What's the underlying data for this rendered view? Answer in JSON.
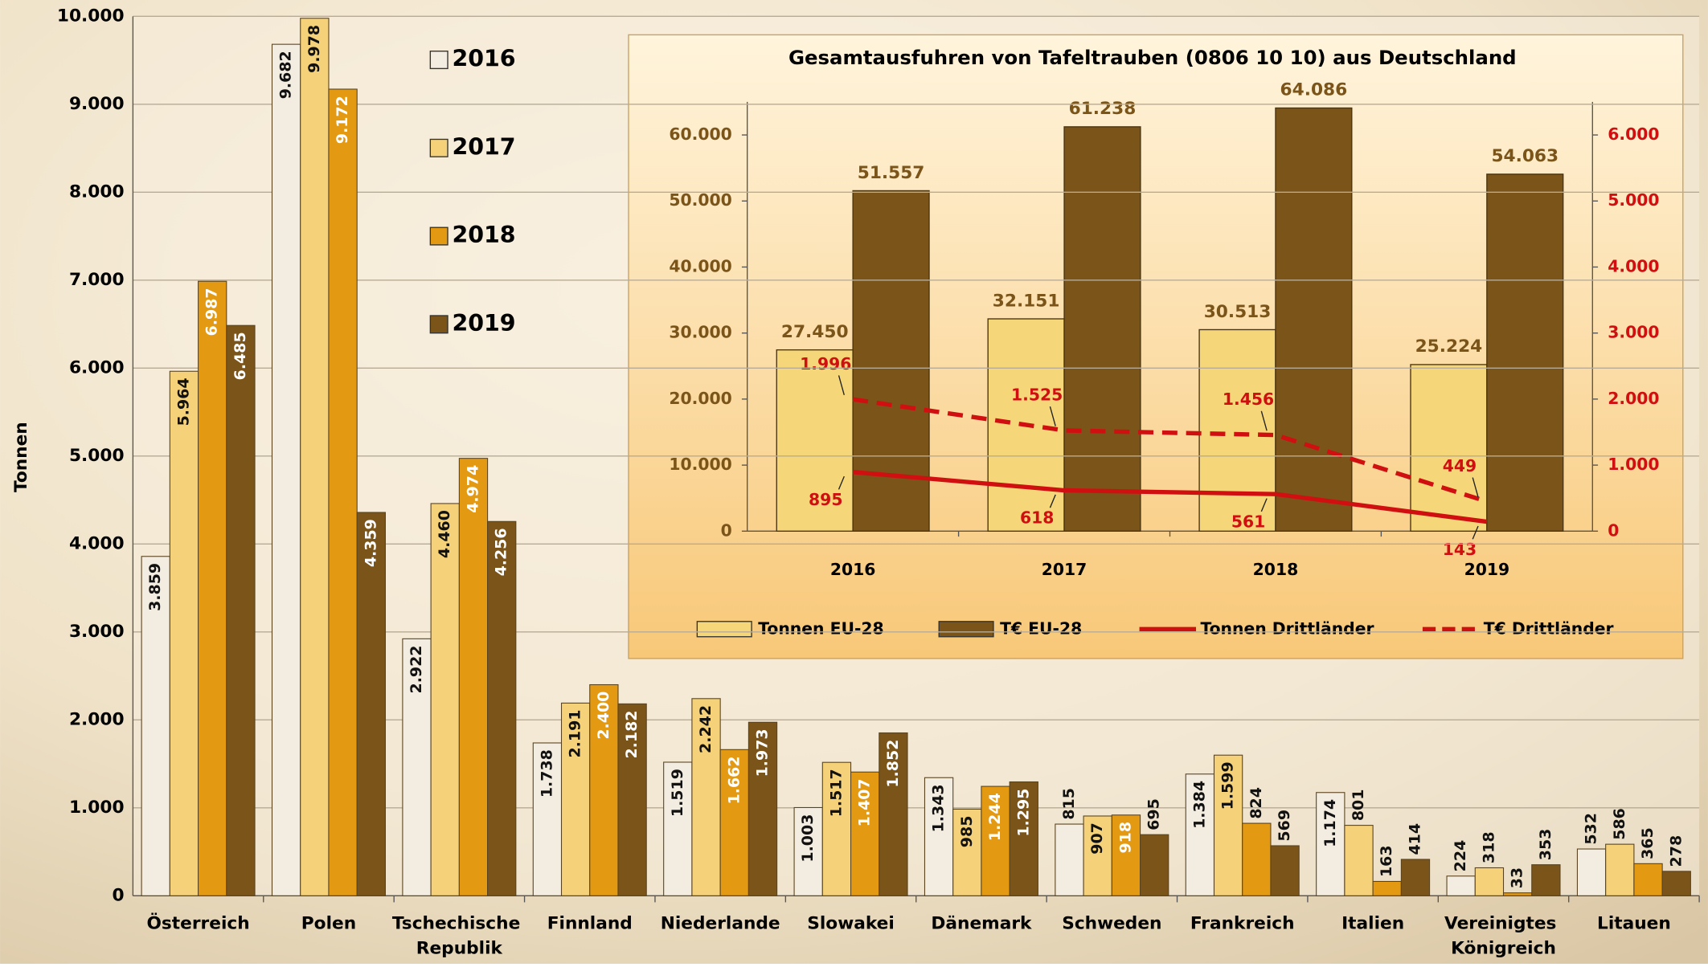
{
  "chart_data": [
    {
      "type": "bar",
      "ylabel": "Tonnen",
      "categories": [
        "Österreich",
        "Polen",
        "Tschechische Republik",
        "Finnland",
        "Niederlande",
        "Slowakei",
        "Dänemark",
        "Schweden",
        "Frankreich",
        "Italien",
        "Vereinigtes Königreich",
        "Litauen"
      ],
      "series": [
        {
          "name": "2016",
          "color": "#f3ece0",
          "values": [
            3859,
            9682,
            2922,
            1738,
            1519,
            1003,
            1343,
            815,
            1384,
            1174,
            224,
            532
          ],
          "value_labels": [
            "3.859",
            "9.682",
            "2.922",
            "1.738",
            "1.519",
            "1.003",
            "1.343",
            "815",
            "1.384",
            "1.174",
            "224",
            "532"
          ]
        },
        {
          "name": "2017",
          "color": "#f5d27a",
          "values": [
            5964,
            9978,
            4460,
            2191,
            2242,
            1517,
            985,
            907,
            1599,
            801,
            318,
            586
          ],
          "value_labels": [
            "5.964",
            "9.978",
            "4.460",
            "2.191",
            "2.242",
            "1.517",
            "985",
            "907",
            "1.599",
            "801",
            "318",
            "586"
          ]
        },
        {
          "name": "2018",
          "color": "#e39a12",
          "values": [
            6987,
            9172,
            4974,
            2400,
            1662,
            1407,
            1244,
            918,
            824,
            163,
            33,
            365
          ],
          "value_labels": [
            "6.987",
            "9.172",
            "4.974",
            "2.400",
            "1.662",
            "1.407",
            "1.244",
            "918",
            "824",
            "163",
            "33",
            "365"
          ]
        },
        {
          "name": "2019",
          "color": "#7a5418",
          "values": [
            6485,
            4359,
            4256,
            2182,
            1973,
            1852,
            1295,
            695,
            569,
            414,
            353,
            278
          ],
          "value_labels": [
            "6.485",
            "4.359",
            "4.256",
            "2.182",
            "1.973",
            "1.852",
            "1.295",
            "695",
            "569",
            "414",
            "353",
            "278"
          ]
        }
      ],
      "ylim": [
        0,
        10000
      ],
      "yticks": [
        0,
        {
          "value": 1000,
          "label": "1.000"
        },
        {
          "value": 2000,
          "label": "2.000"
        },
        {
          "value": 3000,
          "label": "3.000"
        },
        {
          "value": 4000,
          "label": "4.000"
        },
        {
          "value": 5000,
          "label": "5.000"
        },
        {
          "value": 6000,
          "label": "6.000"
        },
        {
          "value": 7000,
          "label": "7.000"
        },
        {
          "value": 8000,
          "label": "8.000"
        },
        {
          "value": 9000,
          "label": "9.000"
        },
        {
          "value": 10000,
          "label": "10.000"
        }
      ],
      "grid": true,
      "legend": "upper left"
    },
    {
      "type": "bar",
      "title": "Gesamtausfuhren von Tafeltrauben (0806 10 10) aus Deutschland",
      "categories": [
        "2016",
        "2017",
        "2018",
        "2019"
      ],
      "series": [
        {
          "name": "Tonnen EU-28",
          "color": "#f5d77a",
          "values": [
            27450,
            32151,
            30513,
            25224
          ],
          "value_labels": [
            "27.450",
            "32.151",
            "30.513",
            "25.224"
          ]
        },
        {
          "name": "T€ EU-28",
          "color": "#7a5418",
          "values": [
            51557,
            61238,
            64086,
            54063
          ],
          "value_labels": [
            "51.557",
            "61.238",
            "64.086",
            "54.063"
          ]
        },
        {
          "name": "Tonnen Drittländer",
          "type": "line",
          "axis": "y2",
          "style": "solid",
          "color": "#d01010",
          "values": [
            895,
            618,
            561,
            143
          ],
          "value_labels": [
            "895",
            "618",
            "561",
            "143"
          ]
        },
        {
          "name": "T€ Drittländer",
          "type": "line",
          "axis": "y2",
          "style": "dashed",
          "color": "#d01010",
          "values": [
            1996,
            1525,
            1456,
            449
          ],
          "value_labels": [
            "1.996",
            "1.525",
            "1.456",
            "449"
          ]
        }
      ],
      "ylim": [
        0,
        65000
      ],
      "yticks": [
        0,
        {
          "value": 10000,
          "label": "10.000"
        },
        {
          "value": 20000,
          "label": "20.000"
        },
        {
          "value": 30000,
          "label": "30.000"
        },
        {
          "value": 40000,
          "label": "40.000"
        },
        {
          "value": 50000,
          "label": "50.000"
        },
        {
          "value": 60000,
          "label": "60.000"
        }
      ],
      "y2lim": [
        0,
        6500
      ],
      "y2ticks": [
        0,
        {
          "value": 1000,
          "label": "1.000"
        },
        {
          "value": 2000,
          "label": "2.000"
        },
        {
          "value": 3000,
          "label": "3.000"
        },
        {
          "value": 4000,
          "label": "4.000"
        },
        {
          "value": 5000,
          "label": "5.000"
        },
        {
          "value": 6000,
          "label": "6.000"
        }
      ],
      "grid": false,
      "legend": "bottom"
    }
  ]
}
